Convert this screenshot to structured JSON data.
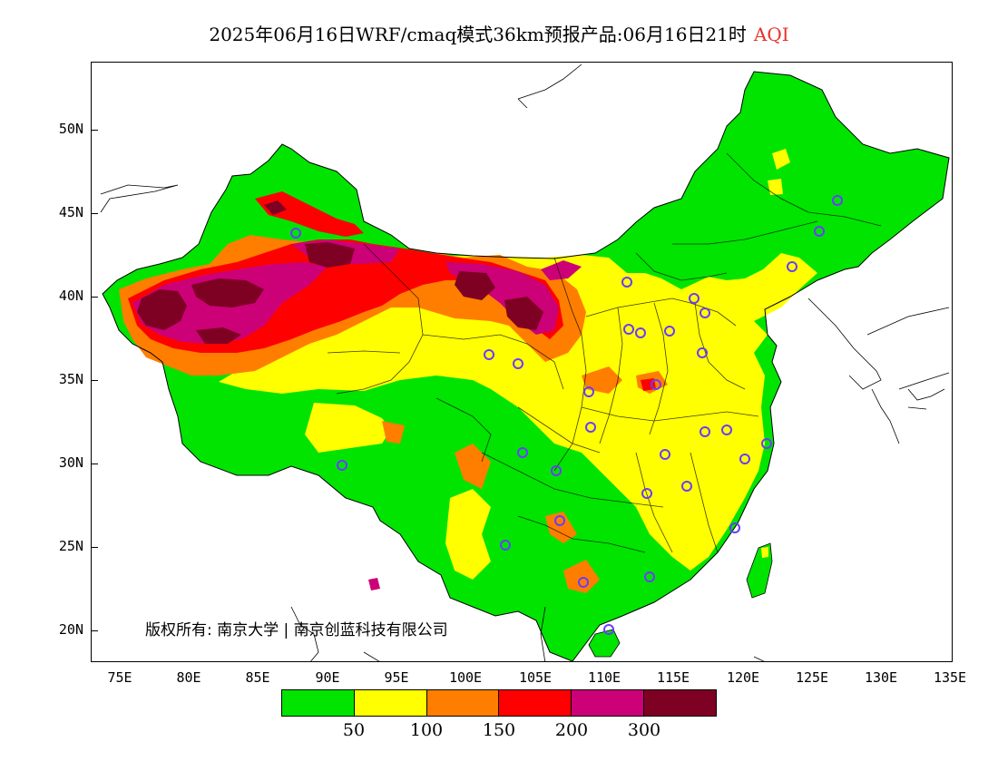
{
  "title": {
    "main": "2025年06月16日WRF/cmaq模式36km预报产品:06月16日21时",
    "product": "AQI"
  },
  "copyright": "版权所有: 南京大学 | 南京创蓝科技有限公司",
  "axes": {
    "lat_labels": [
      "50N",
      "45N",
      "40N",
      "35N",
      "30N",
      "25N",
      "20N"
    ],
    "lon_labels": [
      "75E",
      "80E",
      "85E",
      "90E",
      "95E",
      "100E",
      "105E",
      "110E",
      "115E",
      "120E",
      "125E",
      "130E",
      "135E"
    ]
  },
  "legend": {
    "colors": [
      "#00e400",
      "#ffff00",
      "#ff7e00",
      "#ff0000",
      "#cc0077",
      "#7e0023"
    ],
    "labels": [
      "50",
      "100",
      "150",
      "200",
      "300"
    ]
  },
  "colors": {
    "green": "#00e400",
    "yellow": "#ffff00",
    "orange": "#ff7e00",
    "red": "#ff0000",
    "purple": "#cc0077",
    "maroon": "#7e0023",
    "station_ring": "#6a3cff"
  }
}
